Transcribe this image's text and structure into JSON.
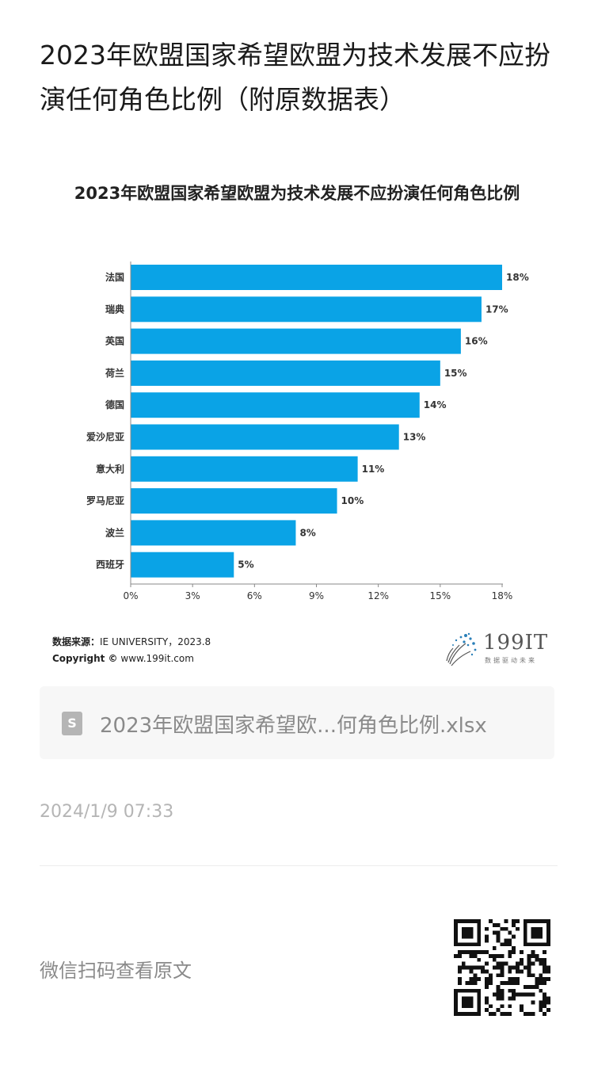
{
  "article": {
    "title": "2023年欧盟国家希望欧盟为技术发展不应扮演任何角色比例（附原数据表）"
  },
  "chart_data": {
    "type": "bar",
    "orientation": "horizontal",
    "title": "2023年欧盟国家希望欧盟为技术发展不应扮演任何角色比例",
    "categories": [
      "法国",
      "瑞典",
      "英国",
      "荷兰",
      "德国",
      "爱沙尼亚",
      "意大利",
      "罗马尼亚",
      "波兰",
      "西班牙"
    ],
    "values": [
      18,
      17,
      16,
      15,
      14,
      13,
      11,
      10,
      8,
      5
    ],
    "value_labels": [
      "18%",
      "17%",
      "16%",
      "15%",
      "14%",
      "13%",
      "11%",
      "10%",
      "8%",
      "5%"
    ],
    "xticks": [
      "0%",
      "3%",
      "6%",
      "9%",
      "12%",
      "15%",
      "18%"
    ],
    "xtick_values": [
      0,
      3,
      6,
      9,
      12,
      15,
      18
    ],
    "xlim": [
      0,
      18
    ],
    "grid": false,
    "bar_color": "#0aa3e6"
  },
  "source": {
    "label": "数据来源：",
    "text": "IE UNIVERSITY，2023.8",
    "copyright_label": "Copyright ©",
    "copyright_site": "www.199it.com"
  },
  "logo": {
    "name": "199IT",
    "tagline": "数据驱动未来"
  },
  "file": {
    "icon_letter": "S",
    "name": "2023年欧盟国家希望欧...何角色比例.xlsx"
  },
  "timestamp": "2024/1/9 07:33",
  "footer": {
    "wechat_text": "微信扫码查看原文"
  }
}
